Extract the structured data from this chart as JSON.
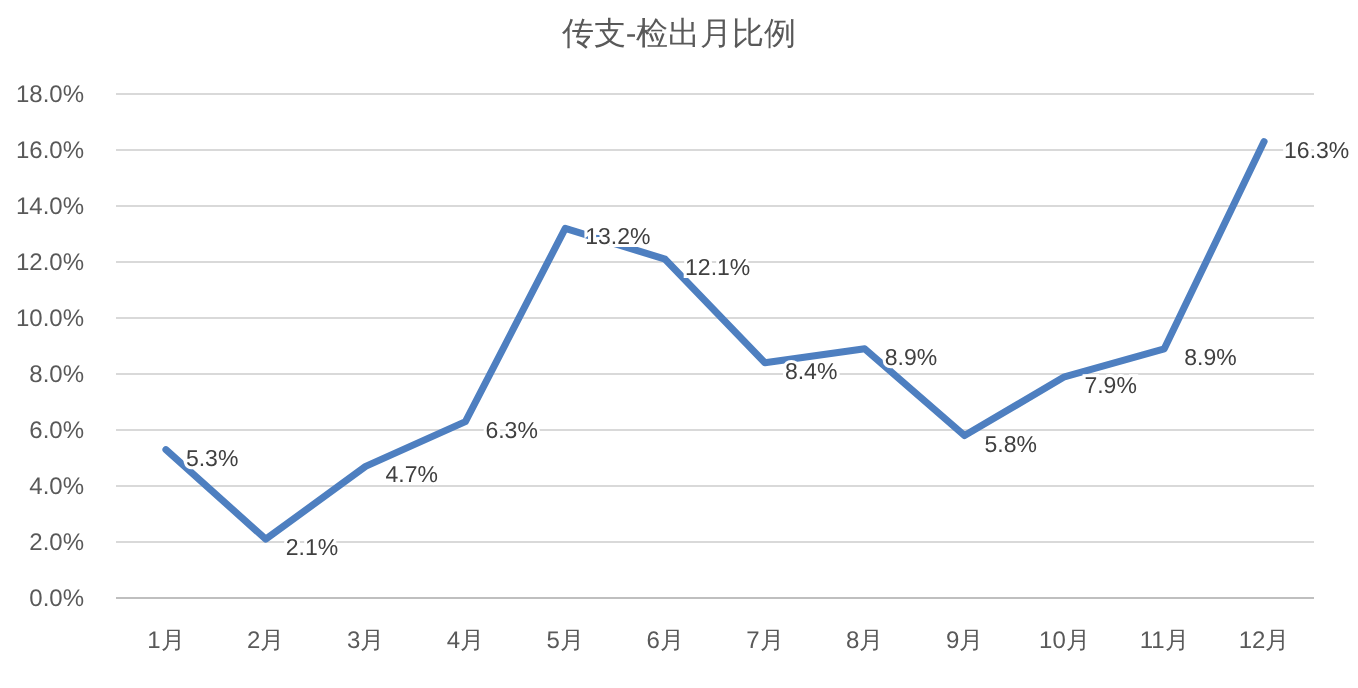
{
  "chart_data": {
    "type": "line",
    "title": "传支-检出月比例",
    "categories": [
      "1月",
      "2月",
      "3月",
      "4月",
      "5月",
      "6月",
      "7月",
      "8月",
      "9月",
      "10月",
      "11月",
      "12月"
    ],
    "series": [
      {
        "color": "#4e7fc0",
        "values": [
          5.3,
          2.1,
          4.7,
          6.3,
          13.2,
          12.1,
          8.4,
          8.9,
          5.8,
          7.9,
          8.9,
          16.3
        ],
        "value_labels": [
          "5.3%",
          "2.1%",
          "4.7%",
          "6.3%",
          "13.2%",
          "12.1%",
          "8.4%",
          "8.9%",
          "5.8%",
          "7.9%",
          "8.9%",
          "16.3%"
        ]
      }
    ],
    "ylim": [
      0,
      18
    ],
    "yticks": [
      {
        "value": 0,
        "label": "0.0%"
      },
      {
        "value": 2,
        "label": "2.0%"
      },
      {
        "value": 4,
        "label": "4.0%"
      },
      {
        "value": 6,
        "label": "6.0%"
      },
      {
        "value": 8,
        "label": "8.0%"
      },
      {
        "value": 10,
        "label": "10.0%"
      },
      {
        "value": 12,
        "label": "12.0%"
      },
      {
        "value": 14,
        "label": "14.0%"
      },
      {
        "value": 16,
        "label": "16.0%"
      },
      {
        "value": 18,
        "label": "18.0%"
      }
    ],
    "grid": "y",
    "marker": "none",
    "line_style": "solid"
  }
}
